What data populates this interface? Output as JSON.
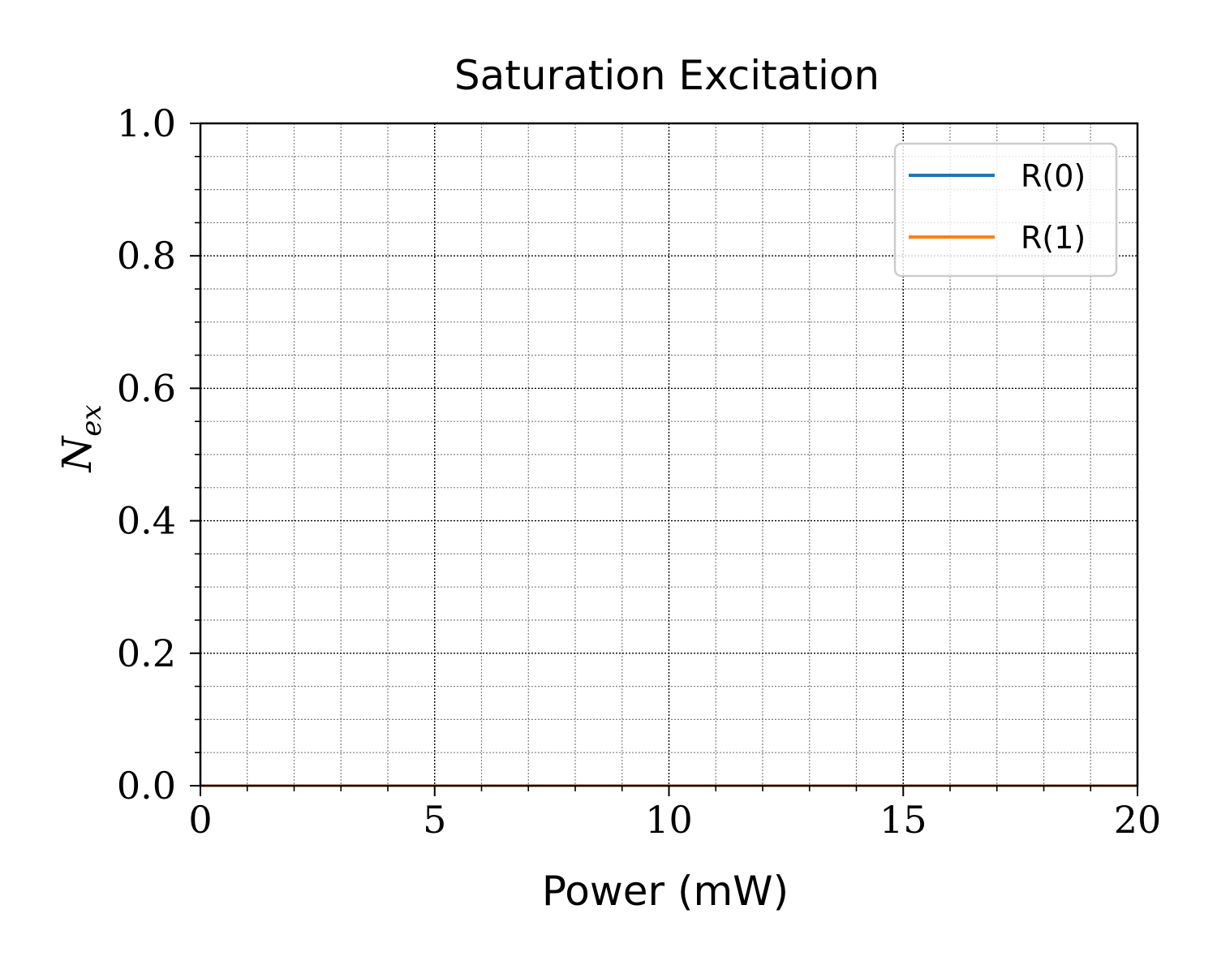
{
  "chart_data": {
    "type": "line",
    "title": "Saturation Excitation",
    "xlabel": "Power (mW)",
    "ylabel": {
      "base": "N",
      "subscript": "ex"
    },
    "xlim": [
      0,
      20
    ],
    "ylim": [
      0,
      1.0
    ],
    "x_major_ticks": [
      0,
      5,
      10,
      15,
      20
    ],
    "x_tick_labels": [
      "0",
      "5",
      "10",
      "15",
      "20"
    ],
    "x_minor_step": 1,
    "y_major_ticks": [
      0,
      0.2,
      0.4,
      0.6,
      0.8,
      1.0
    ],
    "y_tick_labels": [
      "0.0",
      "0.2",
      "0.4",
      "0.6",
      "0.8",
      "1.0"
    ],
    "y_minor_step": 0.05,
    "grid": true,
    "legend_position": "top-right",
    "series": [
      {
        "name": "R(0)",
        "color": "#1f77b4",
        "x": [
          0,
          5,
          10,
          15,
          20
        ],
        "y": [
          0,
          0,
          0,
          0,
          0
        ]
      },
      {
        "name": "R(1)",
        "color": "#ff7f0e",
        "x": [
          0,
          5,
          10,
          15,
          20
        ],
        "y": [
          0,
          0,
          0,
          0,
          0
        ]
      }
    ]
  }
}
